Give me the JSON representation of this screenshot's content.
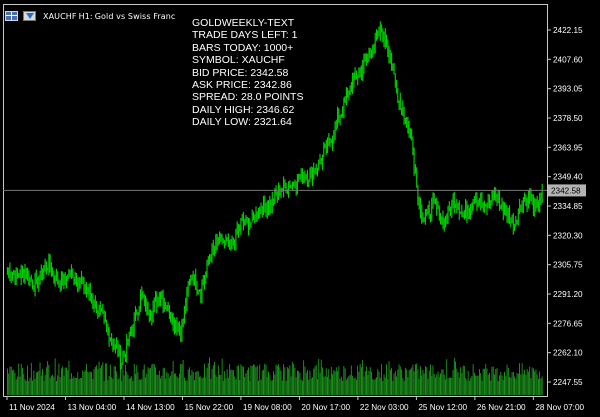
{
  "window": {
    "symbol": "XAUCHF",
    "timeframe": "H1:",
    "description": "Gold vs Swiss Franc"
  },
  "icons": {
    "chart_grid_icon": "window-grid-icon",
    "algo_icon": "expert-advisor-icon"
  },
  "info_panel": {
    "lines": [
      "GOLDWEEKLY-TEXT",
      "TRADE DAYS LEFT: 1",
      "BARS TODAY: 1000+",
      "SYMBOL: XAUCHF",
      "BID PRICE: 2342.58",
      "ASK PRICE: 2342.86",
      "SPREAD: 28.0 POINTS",
      "DAILY HIGH: 2346.62",
      "DAILY LOW: 2321.64"
    ]
  },
  "colors": {
    "background": "#000000",
    "candle": "#00d200",
    "volume": "#1e9e1e",
    "grid_border": "#c8c8c8",
    "price_line": "#777777",
    "current_price_label_bg": "#b4b4b4",
    "axis_text": "#ffffff"
  },
  "chart_data": {
    "type": "candlestick",
    "symbol": "XAUCHF",
    "timeframe": "H1",
    "y_ticks": [
      "2422.15",
      "2407.60",
      "2393.05",
      "2378.50",
      "2363.95",
      "2349.40",
      "2334.85",
      "2320.30",
      "2305.75",
      "2291.20",
      "2276.65",
      "2262.10",
      "2247.55"
    ],
    "ylim": [
      2239.5,
      2433
    ],
    "current_price": "2342.58",
    "x_ticks": [
      "11 Nov 2024",
      "13 Nov 04:00",
      "14 Nov 13:00",
      "15 Nov 22:00",
      "19 Nov 08:00",
      "20 Nov 17:00",
      "22 Nov 03:00",
      "25 Nov 12:00",
      "26 Nov 21:00",
      "28 Nov 07:00"
    ],
    "price_path": [
      {
        "bar": 0,
        "price": 2303
      },
      {
        "bar": 8,
        "price": 2300
      },
      {
        "bar": 14,
        "price": 2303
      },
      {
        "bar": 22,
        "price": 2295
      },
      {
        "bar": 32,
        "price": 2306
      },
      {
        "bar": 42,
        "price": 2297
      },
      {
        "bar": 52,
        "price": 2302
      },
      {
        "bar": 60,
        "price": 2296
      },
      {
        "bar": 72,
        "price": 2284
      },
      {
        "bar": 82,
        "price": 2270
      },
      {
        "bar": 91,
        "price": 2258
      },
      {
        "bar": 98,
        "price": 2271
      },
      {
        "bar": 106,
        "price": 2290
      },
      {
        "bar": 114,
        "price": 2282
      },
      {
        "bar": 122,
        "price": 2291
      },
      {
        "bar": 130,
        "price": 2281
      },
      {
        "bar": 138,
        "price": 2272
      },
      {
        "bar": 146,
        "price": 2301
      },
      {
        "bar": 154,
        "price": 2293
      },
      {
        "bar": 162,
        "price": 2311
      },
      {
        "bar": 170,
        "price": 2318
      },
      {
        "bar": 178,
        "price": 2314
      },
      {
        "bar": 186,
        "price": 2326
      },
      {
        "bar": 194,
        "price": 2327
      },
      {
        "bar": 202,
        "price": 2334
      },
      {
        "bar": 210,
        "price": 2336
      },
      {
        "bar": 218,
        "price": 2343
      },
      {
        "bar": 226,
        "price": 2346
      },
      {
        "bar": 234,
        "price": 2349
      },
      {
        "bar": 242,
        "price": 2351
      },
      {
        "bar": 250,
        "price": 2358
      },
      {
        "bar": 258,
        "price": 2369
      },
      {
        "bar": 266,
        "price": 2382
      },
      {
        "bar": 274,
        "price": 2395
      },
      {
        "bar": 282,
        "price": 2403
      },
      {
        "bar": 290,
        "price": 2413
      },
      {
        "bar": 298,
        "price": 2422
      },
      {
        "bar": 304,
        "price": 2412
      },
      {
        "bar": 310,
        "price": 2391
      },
      {
        "bar": 316,
        "price": 2380
      },
      {
        "bar": 322,
        "price": 2369
      },
      {
        "bar": 327,
        "price": 2339
      },
      {
        "bar": 332,
        "price": 2328
      },
      {
        "bar": 340,
        "price": 2336
      },
      {
        "bar": 348,
        "price": 2326
      },
      {
        "bar": 356,
        "price": 2338
      },
      {
        "bar": 364,
        "price": 2330
      },
      {
        "bar": 372,
        "price": 2340
      },
      {
        "bar": 380,
        "price": 2333
      },
      {
        "bar": 388,
        "price": 2341
      },
      {
        "bar": 396,
        "price": 2332
      },
      {
        "bar": 404,
        "price": 2326
      },
      {
        "bar": 410,
        "price": 2337
      },
      {
        "bar": 416,
        "price": 2340
      },
      {
        "bar": 421,
        "price": 2332
      },
      {
        "bar": 424,
        "price": 2339
      },
      {
        "bar": 426,
        "price": 2343
      }
    ]
  }
}
